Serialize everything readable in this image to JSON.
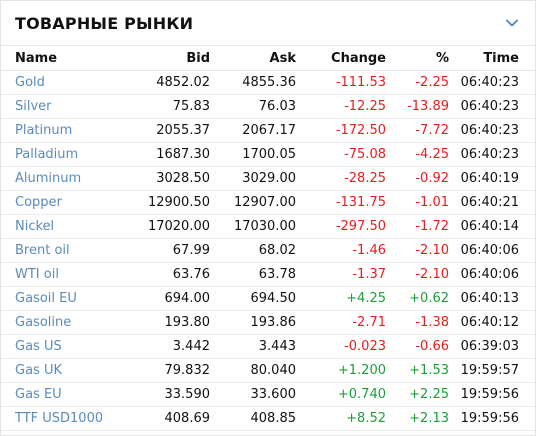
{
  "title": "ТОВАРНЫЕ РЫНКИ",
  "icons": {
    "collapse": "chevron-down-icon"
  },
  "colors": {
    "link": "#5b8bb8",
    "negative": "#e02020",
    "positive": "#1f9d3a"
  },
  "columns": {
    "name": "Name",
    "bid": "Bid",
    "ask": "Ask",
    "change": "Change",
    "pct": "%",
    "time": "Time"
  },
  "rows": [
    {
      "name": "Gold",
      "bid": "4852.02",
      "ask": "4855.36",
      "change": "-111.53",
      "pct": "-2.25",
      "time": "06:40:23",
      "dir": "neg"
    },
    {
      "name": "Silver",
      "bid": "75.83",
      "ask": "76.03",
      "change": "-12.25",
      "pct": "-13.89",
      "time": "06:40:23",
      "dir": "neg"
    },
    {
      "name": "Platinum",
      "bid": "2055.37",
      "ask": "2067.17",
      "change": "-172.50",
      "pct": "-7.72",
      "time": "06:40:23",
      "dir": "neg"
    },
    {
      "name": "Palladium",
      "bid": "1687.30",
      "ask": "1700.05",
      "change": "-75.08",
      "pct": "-4.25",
      "time": "06:40:23",
      "dir": "neg"
    },
    {
      "name": "Aluminum",
      "bid": "3028.50",
      "ask": "3029.00",
      "change": "-28.25",
      "pct": "-0.92",
      "time": "06:40:19",
      "dir": "neg"
    },
    {
      "name": "Copper",
      "bid": "12900.50",
      "ask": "12907.00",
      "change": "-131.75",
      "pct": "-1.01",
      "time": "06:40:21",
      "dir": "neg"
    },
    {
      "name": "Nickel",
      "bid": "17020.00",
      "ask": "17030.00",
      "change": "-297.50",
      "pct": "-1.72",
      "time": "06:40:14",
      "dir": "neg"
    },
    {
      "name": "Brent oil",
      "bid": "67.99",
      "ask": "68.02",
      "change": "-1.46",
      "pct": "-2.10",
      "time": "06:40:06",
      "dir": "neg"
    },
    {
      "name": "WTI oil",
      "bid": "63.76",
      "ask": "63.78",
      "change": "-1.37",
      "pct": "-2.10",
      "time": "06:40:06",
      "dir": "neg"
    },
    {
      "name": "Gasoil EU",
      "bid": "694.00",
      "ask": "694.50",
      "change": "+4.25",
      "pct": "+0.62",
      "time": "06:40:13",
      "dir": "pos"
    },
    {
      "name": "Gasoline",
      "bid": "193.80",
      "ask": "193.86",
      "change": "-2.71",
      "pct": "-1.38",
      "time": "06:40:12",
      "dir": "neg"
    },
    {
      "name": "Gas US",
      "bid": "3.442",
      "ask": "3.443",
      "change": "-0.023",
      "pct": "-0.66",
      "time": "06:39:03",
      "dir": "neg"
    },
    {
      "name": "Gas UK",
      "bid": "79.832",
      "ask": "80.040",
      "change": "+1.200",
      "pct": "+1.53",
      "time": "19:59:57",
      "dir": "pos"
    },
    {
      "name": "Gas EU",
      "bid": "33.590",
      "ask": "33.600",
      "change": "+0.740",
      "pct": "+2.25",
      "time": "19:59:56",
      "dir": "pos"
    },
    {
      "name": "TTF USD1000",
      "bid": "408.69",
      "ask": "408.85",
      "change": "+8.52",
      "pct": "+2.13",
      "time": "19:59:56",
      "dir": "pos"
    }
  ]
}
